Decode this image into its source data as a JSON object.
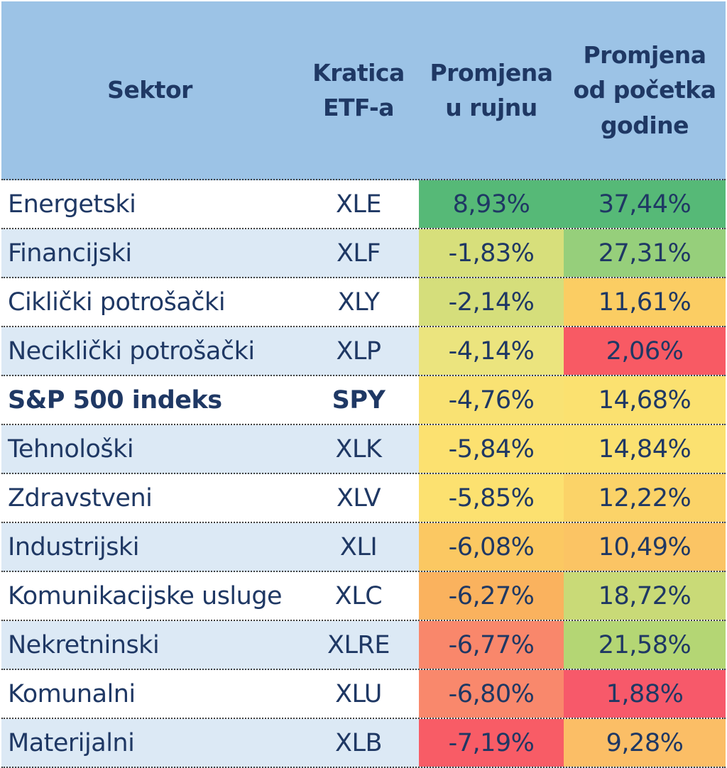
{
  "colors": {
    "header_bg": "#9CC3E6",
    "row_bg": "#FFFFFF",
    "row_alt_bg": "#DCE9F5",
    "text": "#1F3864",
    "border": "#3F3F3F",
    "scale_green": "#56B977",
    "scale_yellow": "#FCE170",
    "scale_red": "#F85C66"
  },
  "table": {
    "header": {
      "sector": "Sektor",
      "ticker": "Kratica\nETF-a",
      "september": "Promjena\nu rujnu",
      "ytd": "Promjena\nod početka\ngodine"
    },
    "rows": [
      {
        "sector": "Energetski",
        "ticker": "XLE",
        "september": "8,93%",
        "ytd": "37,44%",
        "sep_color": "#56B977",
        "ytd_color": "#56B977",
        "bold": false
      },
      {
        "sector": "Financijski",
        "ticker": "XLF",
        "september": "-1,83%",
        "ytd": "27,31%",
        "sep_color": "#D7DF7B",
        "ytd_color": "#96CF7B",
        "bold": false
      },
      {
        "sector": "Ciklički potrošački",
        "ticker": "XLY",
        "september": "-2,14%",
        "ytd": "11,61%",
        "sep_color": "#D5DE7B",
        "ytd_color": "#FBCD63",
        "bold": false
      },
      {
        "sector": "Neciklički potrošački",
        "ticker": "XLP",
        "september": "-4,14%",
        "ytd": "2,06%",
        "sep_color": "#EBE47E",
        "ytd_color": "#F85A64",
        "bold": false
      },
      {
        "sector": "S&P 500 indeks",
        "ticker": "SPY",
        "september": "-4,76%",
        "ytd": "14,68%",
        "sep_color": "#F9E273",
        "ytd_color": "#FBE170",
        "bold": true
      },
      {
        "sector": "Tehnološki",
        "ticker": "XLK",
        "september": "-5,84%",
        "ytd": "14,84%",
        "sep_color": "#FCE170",
        "ytd_color": "#FBE170",
        "bold": false
      },
      {
        "sector": "Zdravstveni",
        "ticker": "XLV",
        "september": "-5,85%",
        "ytd": "12,22%",
        "sep_color": "#FCE170",
        "ytd_color": "#FBD368",
        "bold": false
      },
      {
        "sector": "Industrijski",
        "ticker": "XLI",
        "september": "-6,08%",
        "ytd": "10,49%",
        "sep_color": "#FBC862",
        "ytd_color": "#FBC464",
        "bold": false
      },
      {
        "sector": "Komunikacijske usluge",
        "ticker": "XLC",
        "september": "-6,27%",
        "ytd": "18,72%",
        "sep_color": "#FAB25E",
        "ytd_color": "#C9DA77",
        "bold": false
      },
      {
        "sector": "Nekretninski",
        "ticker": "XLRE",
        "september": "-6,77%",
        "ytd": "21,58%",
        "sep_color": "#F9876B",
        "ytd_color": "#B4D674",
        "bold": false
      },
      {
        "sector": "Komunalni",
        "ticker": "XLU",
        "september": "-6,80%",
        "ytd": "1,88%",
        "sep_color": "#F9886C",
        "ytd_color": "#F7596A",
        "bold": false
      },
      {
        "sector": "Materijalni",
        "ticker": "XLB",
        "september": "-7,19%",
        "ytd": "9,28%",
        "sep_color": "#F85C66",
        "ytd_color": "#FBBE66",
        "bold": false
      }
    ]
  },
  "chart_data": {
    "type": "table",
    "columns": [
      "Sektor",
      "Kratica ETF-a",
      "Promjena u rujnu",
      "Promjena od početka godine"
    ],
    "rows": [
      [
        "Energetski",
        "XLE",
        "8,93%",
        "37,44%"
      ],
      [
        "Financijski",
        "XLF",
        "-1,83%",
        "27,31%"
      ],
      [
        "Ciklički potrošački",
        "XLY",
        "-2,14%",
        "11,61%"
      ],
      [
        "Neciklički potrošački",
        "XLP",
        "-4,14%",
        "2,06%"
      ],
      [
        "S&P 500 indeks",
        "SPY",
        "-4,76%",
        "14,68%"
      ],
      [
        "Tehnološki",
        "XLK",
        "-5,84%",
        "14,84%"
      ],
      [
        "Zdravstveni",
        "XLV",
        "-5,85%",
        "12,22%"
      ],
      [
        "Industrijski",
        "XLI",
        "-6,08%",
        "10,49%"
      ],
      [
        "Komunikacijske usluge",
        "XLC",
        "-6,27%",
        "18,72%"
      ],
      [
        "Nekretninski",
        "XLRE",
        "-6,77%",
        "21,58%"
      ],
      [
        "Komunalni",
        "XLU",
        "-6,80%",
        "1,88%"
      ],
      [
        "Materijalni",
        "XLB",
        "-7,19%",
        "9,28%"
      ]
    ],
    "september_change_pct": [
      8.93,
      -1.83,
      -2.14,
      -4.14,
      -4.76,
      -5.84,
      -5.85,
      -6.08,
      -6.27,
      -6.77,
      -6.8,
      -7.19
    ],
    "ytd_change_pct": [
      37.44,
      27.31,
      11.61,
      2.06,
      14.68,
      14.84,
      12.22,
      10.49,
      18.72,
      21.58,
      1.88,
      9.28
    ],
    "heatmap": "red-yellow-green 3-color scale applied to both percentage columns",
    "notes": "Croatian decimal-comma formatting; S&P 500 indeks / SPY row shown in bold"
  }
}
